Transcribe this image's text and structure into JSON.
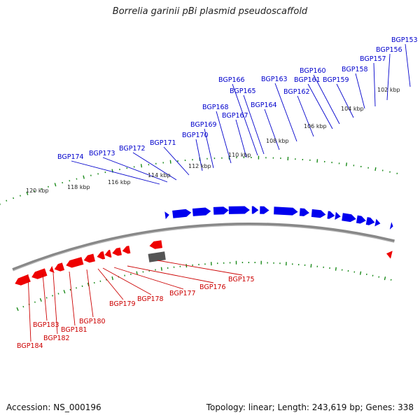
{
  "title": "Borrelia garinii pBi plasmid pseudoscaffold",
  "footer": {
    "accession": "Accession: NS_000196",
    "summary": "Topology: linear; Length: 243,619 bp; Genes: 338"
  },
  "colors": {
    "forward_gene": "#0000ee",
    "reverse_gene": "#ee0000",
    "forward_label": "#0000cc",
    "reverse_label": "#cc0000",
    "backbone": "#888888",
    "ticks": "#1a8a1a",
    "other_feature": "#555555"
  },
  "scale_labels": [
    "102 kbp",
    "104 kbp",
    "106 kbp",
    "108 kbp",
    "110 kbp",
    "112 kbp",
    "114 kbp",
    "116 kbp",
    "118 kbp",
    "120 kbp"
  ],
  "forward_genes": [
    "BGP153",
    "BGP156",
    "BGP157",
    "BGP158",
    "BGP159",
    "BGP160",
    "BGP161",
    "BGP162",
    "BGP163",
    "BGP164",
    "BGP165",
    "BGP166",
    "BGP167",
    "BGP168",
    "BGP169",
    "BGP170",
    "BGP171",
    "BGP172",
    "BGP173",
    "BGP174"
  ],
  "reverse_genes": [
    "BGP175",
    "BGP176",
    "BGP177",
    "BGP178",
    "BGP179",
    "BGP180",
    "BGP181",
    "BGP182",
    "BGP183",
    "BGP184"
  ]
}
